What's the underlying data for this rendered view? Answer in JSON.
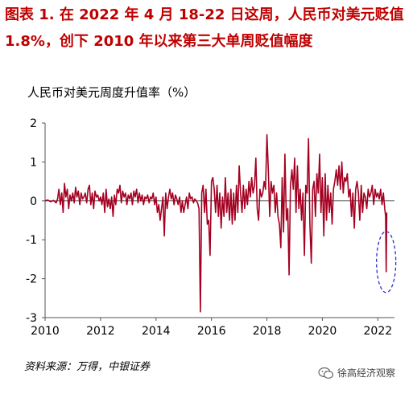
{
  "title": "图表 1.  在 2022 年 4 月 18-22 日这周，人民币对美元贬值 1.8%，创下 2010 年以来第三大单周贬值幅度",
  "source": "资料来源：万得，中银证券",
  "watermark": "徐高经济观察",
  "chart_data": {
    "type": "line",
    "title": "",
    "ylabel": "人民币对美元周度升值率（%）",
    "xlabel": "",
    "xlim": [
      2010,
      2022.6
    ],
    "ylim": [
      -3,
      2
    ],
    "xticks": [
      "2010",
      "2012",
      "2014",
      "2016",
      "2018",
      "2020",
      "2022"
    ],
    "yticks": [
      "2",
      "1",
      "0",
      "-1",
      "-2",
      "-3"
    ],
    "series": [
      {
        "color": "#a50021",
        "points": [
          [
            2010.0,
            0.0
          ],
          [
            2010.1,
            0.02
          ],
          [
            2010.2,
            -0.02
          ],
          [
            2010.3,
            0.01
          ],
          [
            2010.4,
            -0.05
          ],
          [
            2010.45,
            0.05
          ],
          [
            2010.5,
            0.3
          ],
          [
            2010.55,
            -0.1
          ],
          [
            2010.6,
            0.2
          ],
          [
            2010.65,
            -0.3
          ],
          [
            2010.7,
            0.45
          ],
          [
            2010.75,
            0.1
          ],
          [
            2010.8,
            0.3
          ],
          [
            2010.85,
            -0.2
          ],
          [
            2010.9,
            0.15
          ],
          [
            2010.95,
            0.0
          ],
          [
            2011.0,
            0.2
          ],
          [
            2011.05,
            -0.05
          ],
          [
            2011.1,
            0.35
          ],
          [
            2011.15,
            0.1
          ],
          [
            2011.2,
            0.25
          ],
          [
            2011.25,
            -0.1
          ],
          [
            2011.3,
            0.2
          ],
          [
            2011.35,
            0.05
          ],
          [
            2011.4,
            0.1
          ],
          [
            2011.45,
            0.2
          ],
          [
            2011.5,
            -0.05
          ],
          [
            2011.55,
            0.3
          ],
          [
            2011.6,
            0.4
          ],
          [
            2011.65,
            -0.1
          ],
          [
            2011.7,
            0.2
          ],
          [
            2011.75,
            -0.2
          ],
          [
            2011.8,
            0.25
          ],
          [
            2011.85,
            0.1
          ],
          [
            2011.9,
            0.15
          ],
          [
            2011.95,
            0.0
          ],
          [
            2012.0,
            0.1
          ],
          [
            2012.05,
            -0.1
          ],
          [
            2012.1,
            0.2
          ],
          [
            2012.15,
            -0.3
          ],
          [
            2012.2,
            0.3
          ],
          [
            2012.25,
            -0.15
          ],
          [
            2012.3,
            0.05
          ],
          [
            2012.35,
            -0.2
          ],
          [
            2012.4,
            0.1
          ],
          [
            2012.45,
            -0.4
          ],
          [
            2012.5,
            0.15
          ],
          [
            2012.55,
            -0.1
          ],
          [
            2012.6,
            0.3
          ],
          [
            2012.65,
            0.2
          ],
          [
            2012.7,
            0.4
          ],
          [
            2012.75,
            -0.05
          ],
          [
            2012.8,
            0.25
          ],
          [
            2012.85,
            0.1
          ],
          [
            2012.9,
            0.2
          ],
          [
            2012.95,
            -0.1
          ],
          [
            2013.0,
            0.15
          ],
          [
            2013.05,
            0.05
          ],
          [
            2013.1,
            0.2
          ],
          [
            2013.15,
            -0.1
          ],
          [
            2013.2,
            0.25
          ],
          [
            2013.25,
            0.1
          ],
          [
            2013.3,
            0.3
          ],
          [
            2013.35,
            -0.05
          ],
          [
            2013.4,
            0.2
          ],
          [
            2013.45,
            0.0
          ],
          [
            2013.5,
            0.15
          ],
          [
            2013.55,
            -0.1
          ],
          [
            2013.6,
            0.1
          ],
          [
            2013.65,
            0.05
          ],
          [
            2013.7,
            0.15
          ],
          [
            2013.75,
            -0.05
          ],
          [
            2013.8,
            0.1
          ],
          [
            2013.85,
            0.05
          ],
          [
            2013.9,
            0.2
          ],
          [
            2013.95,
            -0.1
          ],
          [
            2014.0,
            0.1
          ],
          [
            2014.05,
            -0.3
          ],
          [
            2014.1,
            -0.1
          ],
          [
            2014.15,
            -0.5
          ],
          [
            2014.2,
            -0.2
          ],
          [
            2014.25,
            0.1
          ],
          [
            2014.3,
            -0.9
          ],
          [
            2014.35,
            0.2
          ],
          [
            2014.4,
            -0.2
          ],
          [
            2014.45,
            0.1
          ],
          [
            2014.5,
            0.3
          ],
          [
            2014.55,
            0.05
          ],
          [
            2014.6,
            0.2
          ],
          [
            2014.65,
            -0.1
          ],
          [
            2014.7,
            0.15
          ],
          [
            2014.75,
            0.05
          ],
          [
            2014.8,
            -0.1
          ],
          [
            2014.85,
            0.1
          ],
          [
            2014.9,
            -0.3
          ],
          [
            2014.95,
            0.0
          ],
          [
            2015.0,
            -0.3
          ],
          [
            2015.05,
            -0.1
          ],
          [
            2015.1,
            0.1
          ],
          [
            2015.15,
            -0.2
          ],
          [
            2015.2,
            0.2
          ],
          [
            2015.25,
            0.05
          ],
          [
            2015.3,
            0.1
          ],
          [
            2015.35,
            -0.05
          ],
          [
            2015.4,
            0.05
          ],
          [
            2015.45,
            0.0
          ],
          [
            2015.5,
            -0.05
          ],
          [
            2015.55,
            -0.2
          ],
          [
            2015.6,
            -2.85
          ],
          [
            2015.65,
            0.2
          ],
          [
            2015.7,
            0.4
          ],
          [
            2015.75,
            -0.3
          ],
          [
            2015.8,
            0.3
          ],
          [
            2015.85,
            -0.6
          ],
          [
            2015.9,
            -0.5
          ],
          [
            2015.95,
            -1.4
          ],
          [
            2016.0,
            0.5
          ],
          [
            2016.05,
            0.6
          ],
          [
            2016.1,
            0.3
          ],
          [
            2016.15,
            -0.3
          ],
          [
            2016.2,
            0.4
          ],
          [
            2016.25,
            -0.4
          ],
          [
            2016.3,
            0.2
          ],
          [
            2016.35,
            -0.7
          ],
          [
            2016.4,
            0.1
          ],
          [
            2016.45,
            -0.4
          ],
          [
            2016.5,
            0.6
          ],
          [
            2016.55,
            -0.3
          ],
          [
            2016.6,
            0.2
          ],
          [
            2016.65,
            -0.5
          ],
          [
            2016.7,
            0.3
          ],
          [
            2016.75,
            -0.6
          ],
          [
            2016.8,
            0.2
          ],
          [
            2016.85,
            -0.5
          ],
          [
            2016.9,
            0.4
          ],
          [
            2016.95,
            -0.3
          ],
          [
            2017.0,
            0.9
          ],
          [
            2017.05,
            0.2
          ],
          [
            2017.1,
            -0.3
          ],
          [
            2017.15,
            0.4
          ],
          [
            2017.2,
            -0.2
          ],
          [
            2017.25,
            0.3
          ],
          [
            2017.3,
            -0.1
          ],
          [
            2017.35,
            0.5
          ],
          [
            2017.4,
            0.1
          ],
          [
            2017.45,
            0.6
          ],
          [
            2017.5,
            0.2
          ],
          [
            2017.55,
            0.4
          ],
          [
            2017.6,
            1.1
          ],
          [
            2017.65,
            -0.2
          ],
          [
            2017.7,
            -0.5
          ],
          [
            2017.75,
            0.3
          ],
          [
            2017.8,
            0.1
          ],
          [
            2017.85,
            0.2
          ],
          [
            2017.9,
            0.5
          ],
          [
            2017.95,
            0.3
          ],
          [
            2018.0,
            1.7
          ],
          [
            2018.05,
            0.8
          ],
          [
            2018.1,
            -0.4
          ],
          [
            2018.15,
            0.5
          ],
          [
            2018.2,
            0.2
          ],
          [
            2018.25,
            0.4
          ],
          [
            2018.3,
            -0.3
          ],
          [
            2018.35,
            0.2
          ],
          [
            2018.4,
            -0.4
          ],
          [
            2018.45,
            -0.6
          ],
          [
            2018.5,
            -1.2
          ],
          [
            2018.55,
            0.6
          ],
          [
            2018.6,
            -0.8
          ],
          [
            2018.65,
            1.2
          ],
          [
            2018.7,
            -0.5
          ],
          [
            2018.75,
            -0.2
          ],
          [
            2018.8,
            -1.9
          ],
          [
            2018.85,
            0.4
          ],
          [
            2018.9,
            0.8
          ],
          [
            2018.95,
            0.3
          ],
          [
            2019.0,
            1.1
          ],
          [
            2019.05,
            -0.3
          ],
          [
            2019.1,
            0.9
          ],
          [
            2019.15,
            -0.2
          ],
          [
            2019.2,
            0.3
          ],
          [
            2019.25,
            -0.5
          ],
          [
            2019.3,
            0.2
          ],
          [
            2019.35,
            -1.4
          ],
          [
            2019.4,
            0.4
          ],
          [
            2019.45,
            0.2
          ],
          [
            2019.5,
            1.6
          ],
          [
            2019.55,
            -0.6
          ],
          [
            2019.6,
            -1.6
          ],
          [
            2019.65,
            0.3
          ],
          [
            2019.7,
            0.5
          ],
          [
            2019.75,
            -0.4
          ],
          [
            2019.8,
            0.7
          ],
          [
            2019.85,
            0.2
          ],
          [
            2019.9,
            1.2
          ],
          [
            2019.95,
            -0.3
          ],
          [
            2020.0,
            0.6
          ],
          [
            2020.05,
            -0.9
          ],
          [
            2020.1,
            0.7
          ],
          [
            2020.15,
            -0.5
          ],
          [
            2020.2,
            0.4
          ],
          [
            2020.25,
            -0.3
          ],
          [
            2020.3,
            0.2
          ],
          [
            2020.35,
            -0.6
          ],
          [
            2020.4,
            0.3
          ],
          [
            2020.45,
            0.5
          ],
          [
            2020.5,
            0.8
          ],
          [
            2020.55,
            0.4
          ],
          [
            2020.6,
            0.9
          ],
          [
            2020.65,
            0.3
          ],
          [
            2020.7,
            1.0
          ],
          [
            2020.75,
            0.2
          ],
          [
            2020.8,
            0.6
          ],
          [
            2020.85,
            0.5
          ],
          [
            2020.9,
            0.7
          ],
          [
            2020.95,
            0.1
          ],
          [
            2021.0,
            0.3
          ],
          [
            2021.05,
            -0.4
          ],
          [
            2021.1,
            0.2
          ],
          [
            2021.15,
            -0.7
          ],
          [
            2021.2,
            0.3
          ],
          [
            2021.25,
            0.5
          ],
          [
            2021.3,
            0.2
          ],
          [
            2021.35,
            -0.5
          ],
          [
            2021.4,
            0.4
          ],
          [
            2021.45,
            -0.3
          ],
          [
            2021.5,
            0.2
          ],
          [
            2021.55,
            0.1
          ],
          [
            2021.6,
            -0.2
          ],
          [
            2021.65,
            0.3
          ],
          [
            2021.7,
            0.1
          ],
          [
            2021.75,
            0.2
          ],
          [
            2021.8,
            0.4
          ],
          [
            2021.85,
            -0.1
          ],
          [
            2021.9,
            0.3
          ],
          [
            2021.95,
            0.1
          ],
          [
            2022.0,
            0.2
          ],
          [
            2022.05,
            0.05
          ],
          [
            2022.1,
            0.3
          ],
          [
            2022.15,
            -0.1
          ],
          [
            2022.2,
            0.2
          ],
          [
            2022.25,
            -0.2
          ],
          [
            2022.28,
            -0.4
          ],
          [
            2022.3,
            -1.82
          ],
          [
            2022.32,
            -0.3
          ]
        ]
      }
    ],
    "annotation": {
      "shape": "dashed-ellipse",
      "color": "#2a2ad4",
      "x": 2022.3,
      "y": -1.82
    }
  }
}
